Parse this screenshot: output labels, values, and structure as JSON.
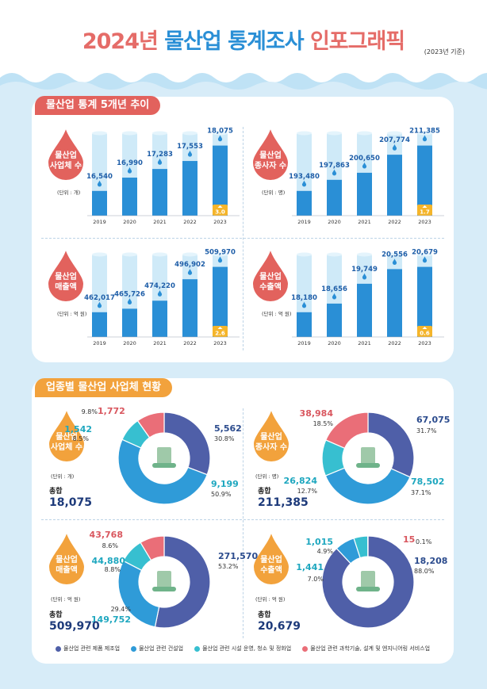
{
  "header": {
    "title_part1": "2024년",
    "title_part2": "물산업 통계조사",
    "title_part3": "인포그래픽",
    "basis": "(2023년 기준)"
  },
  "section1": {
    "title": "물산업 통계 5개년 추이",
    "years": [
      "2019",
      "2020",
      "2021",
      "2022",
      "2023"
    ]
  },
  "section2": {
    "title": "업종별 물산업 사업체 현황"
  },
  "colors": {
    "red_drop": "#e2625d",
    "orange_drop": "#f2a23c",
    "bar_blue": "#2a8fd6",
    "bar_bg": "#cfeaf8",
    "badge": "#f5b52a",
    "seg_manufacturing": "#4f5fa8",
    "seg_construction": "#2f9bd8",
    "seg_operation": "#37bfd0",
    "seg_tech": "#ea6e78",
    "total_value": "#1d3a7a",
    "label_blue": "#2b4b8d",
    "label_red": "#d9575f",
    "label_cyan": "#1ea7bf"
  },
  "chart_data": [
    {
      "type": "bar",
      "id": "biz",
      "title": "물산업 사업체 수",
      "drop_label": [
        "물산업",
        "사업체 수"
      ],
      "unit": "(단위 : 개)",
      "categories": [
        "2019",
        "2020",
        "2021",
        "2022",
        "2023"
      ],
      "values": [
        16540,
        16990,
        17283,
        17553,
        18075
      ],
      "value_labels": [
        "16,540",
        "16,990",
        "17,283",
        "17,553",
        "18,075"
      ],
      "growth": "3.0"
    },
    {
      "type": "bar",
      "id": "emp",
      "title": "물산업 종사자 수",
      "drop_label": [
        "물산업",
        "종사자 수"
      ],
      "unit": "(단위 : 명)",
      "categories": [
        "2019",
        "2020",
        "2021",
        "2022",
        "2023"
      ],
      "values": [
        193480,
        197863,
        200650,
        207774,
        211385
      ],
      "value_labels": [
        "193,480",
        "197,863",
        "200,650",
        "207,774",
        "211,385"
      ],
      "growth": "1.7"
    },
    {
      "type": "bar",
      "id": "sales",
      "title": "물산업 매출액",
      "drop_label": [
        "물산업",
        "매출액"
      ],
      "unit": "(단위 : 억 원)",
      "categories": [
        "2019",
        "2020",
        "2021",
        "2022",
        "2023"
      ],
      "values": [
        462017,
        465726,
        474220,
        496902,
        509970
      ],
      "value_labels": [
        "462,017",
        "465,726",
        "474,220",
        "496,902",
        "509,970"
      ],
      "growth": "2.6"
    },
    {
      "type": "bar",
      "id": "export",
      "title": "물산업 수출액",
      "drop_label": [
        "물산업",
        "수출액"
      ],
      "unit": "(단위 : 억 원)",
      "categories": [
        "2019",
        "2020",
        "2021",
        "2022",
        "2023"
      ],
      "values": [
        18180,
        18656,
        19749,
        20556,
        20679
      ],
      "value_labels": [
        "18,180",
        "18,656",
        "19,749",
        "20,556",
        "20,679"
      ],
      "growth": "0.6"
    },
    {
      "type": "pie",
      "id": "biz_pie",
      "drop_label": [
        "물산업",
        "사업체 수"
      ],
      "unit": "(단위 : 개)",
      "total_label": "총합",
      "total": "18,075",
      "slices": [
        {
          "name": "물산업 관련 제품 제조업",
          "value": "5,562",
          "pct": "30.8",
          "num": 30.8
        },
        {
          "name": "물산업 관련 건설업",
          "value": "9,199",
          "pct": "50.9",
          "num": 50.9
        },
        {
          "name": "물산업 관련 시설 운영, 청소 및 정화업",
          "value": "1,542",
          "pct": "8.5",
          "num": 8.5
        },
        {
          "name": "물산업 관련 과학기술, 설계 및 엔지니어링 서비스업",
          "value": "1,772",
          "pct": "9.8",
          "num": 9.8
        }
      ]
    },
    {
      "type": "pie",
      "id": "emp_pie",
      "drop_label": [
        "물산업",
        "종사자 수"
      ],
      "unit": "(단위 : 명)",
      "total_label": "총합",
      "total": "211,385",
      "slices": [
        {
          "name": "물산업 관련 제품 제조업",
          "value": "67,075",
          "pct": "31.7",
          "num": 31.7
        },
        {
          "name": "물산업 관련 건설업",
          "value": "78,502",
          "pct": "37.1",
          "num": 37.1
        },
        {
          "name": "물산업 관련 시설 운영, 청소 및 정화업",
          "value": "26,824",
          "pct": "12.7",
          "num": 12.7
        },
        {
          "name": "물산업 관련 과학기술, 설계 및 엔지니어링 서비스업",
          "value": "38,984",
          "pct": "18.5",
          "num": 18.5
        }
      ]
    },
    {
      "type": "pie",
      "id": "sales_pie",
      "drop_label": [
        "물산업",
        "매출액"
      ],
      "unit": "(단위 : 억 원)",
      "total_label": "총합",
      "total": "509,970",
      "slices": [
        {
          "name": "물산업 관련 제품 제조업",
          "value": "271,570",
          "pct": "53.2",
          "num": 53.2
        },
        {
          "name": "물산업 관련 건설업",
          "value": "149,752",
          "pct": "29.4",
          "num": 29.4
        },
        {
          "name": "물산업 관련 시설 운영, 청소 및 정화업",
          "value": "44,880",
          "pct": "8.8",
          "num": 8.8
        },
        {
          "name": "물산업 관련 과학기술, 설계 및 엔지니어링 서비스업",
          "value": "43,768",
          "pct": "8.6",
          "num": 8.6
        }
      ]
    },
    {
      "type": "pie",
      "id": "export_pie",
      "drop_label": [
        "물산업",
        "수출액"
      ],
      "unit": "(단위 : 억 원)",
      "total_label": "총합",
      "total": "20,679",
      "slices": [
        {
          "name": "물산업 관련 제품 제조업",
          "value": "18,208",
          "pct": "88.0",
          "num": 88.0
        },
        {
          "name": "물산업 관련 건설업",
          "value": "1,441",
          "pct": "7.0",
          "num": 7.0
        },
        {
          "name": "물산업 관련 시설 운영, 청소 및 정화업",
          "value": "1,015",
          "pct": "4.9",
          "num": 4.9
        },
        {
          "name": "물산업 관련 과학기술, 설계 및 엔지니어링 서비스업",
          "value": "15",
          "pct": "0.1",
          "num": 0.1
        }
      ]
    }
  ],
  "legend": [
    {
      "label": "물산업 관련 제품 제조업",
      "color": "#4f5fa8"
    },
    {
      "label": "물산업 관련 건설업",
      "color": "#2f9bd8"
    },
    {
      "label": "물산업 관련 시설 운영, 청소 및 정화업",
      "color": "#37bfd0"
    },
    {
      "label": "물산업 관련 과학기술, 설계 및 엔지니어링 서비스업",
      "color": "#ea6e78"
    }
  ]
}
